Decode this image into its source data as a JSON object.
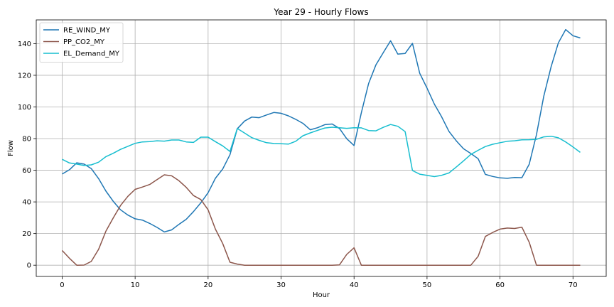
{
  "chart_data": {
    "type": "line",
    "title": "Year 29 - Hourly Flows",
    "xlabel": "Hour",
    "ylabel": "Flow",
    "xlim": [
      -3.55,
      74.55
    ],
    "ylim": [
      -7.1,
      155.0
    ],
    "xticks": [
      0,
      10,
      20,
      30,
      40,
      50,
      60,
      70
    ],
    "yticks": [
      0,
      20,
      40,
      60,
      80,
      100,
      120,
      140
    ],
    "grid": true,
    "legend_position": "top-left",
    "x": [
      0,
      1,
      2,
      3,
      4,
      5,
      6,
      7,
      8,
      9,
      10,
      11,
      12,
      13,
      14,
      15,
      16,
      17,
      18,
      19,
      20,
      21,
      22,
      23,
      24,
      25,
      26,
      27,
      28,
      29,
      30,
      31,
      32,
      33,
      34,
      35,
      36,
      37,
      38,
      39,
      40,
      41,
      42,
      43,
      44,
      45,
      46,
      47,
      48,
      49,
      50,
      51,
      52,
      53,
      54,
      55,
      56,
      57,
      58,
      59,
      60,
      61,
      62,
      63,
      64,
      65,
      66,
      67,
      68,
      69,
      70,
      71
    ],
    "series": [
      {
        "name": "RE_WIND_MY",
        "color": "#1f77b4",
        "values": [
          57.6,
          60.3,
          64.7,
          63.9,
          61.0,
          54.7,
          46.8,
          40.4,
          35.0,
          31.7,
          29.3,
          28.5,
          26.4,
          23.9,
          21.0,
          22.3,
          25.8,
          29.0,
          33.9,
          39.4,
          45.8,
          54.9,
          60.8,
          69.8,
          86.2,
          91.1,
          93.6,
          93.2,
          94.9,
          96.5,
          96.0,
          94.4,
          92.2,
          89.6,
          85.6,
          86.9,
          88.8,
          89.2,
          86.4,
          79.9,
          75.6,
          96.4,
          114.8,
          126.6,
          134.3,
          141.8,
          133.4,
          133.8,
          140.2,
          121.3,
          111.9,
          101.8,
          93.8,
          84.6,
          78.6,
          73.6,
          70.6,
          67.3,
          57.4,
          56.1,
          55.2,
          54.9,
          55.4,
          55.3,
          63.8,
          82.5,
          106.8,
          125.4,
          140.5,
          148.9,
          145.0,
          143.6
        ]
      },
      {
        "name": "PP_CO2_MY",
        "color": "#8c564b",
        "values": [
          9.3,
          4.4,
          0.0,
          0.1,
          2.4,
          10.1,
          21.6,
          29.8,
          37.7,
          43.5,
          47.9,
          49.4,
          51.0,
          54.1,
          57.1,
          56.5,
          53.4,
          49.2,
          44.0,
          41.5,
          35.0,
          22.8,
          13.7,
          1.9,
          0.7,
          0.0,
          0.0,
          0.0,
          0.0,
          0.0,
          0.0,
          0.0,
          0.0,
          0.0,
          0.0,
          0.0,
          0.0,
          0.0,
          0.2,
          6.8,
          11.0,
          0.0,
          0.0,
          0.0,
          0.0,
          0.0,
          0.0,
          0.0,
          0.0,
          0.0,
          0.0,
          0.0,
          0.0,
          0.0,
          0.0,
          0.0,
          0.0,
          5.6,
          18.2,
          20.7,
          22.8,
          23.5,
          23.2,
          24.0,
          14.5,
          0.0,
          0.0,
          0.0,
          0.0,
          0.0,
          0.0,
          0.0
        ]
      },
      {
        "name": "EL_Demand_MY",
        "color": "#17becf",
        "values": [
          66.9,
          64.6,
          63.9,
          63.0,
          63.4,
          65.1,
          68.6,
          70.7,
          73.2,
          75.1,
          77.0,
          77.9,
          78.1,
          78.6,
          78.4,
          79.1,
          79.1,
          77.9,
          77.6,
          80.9,
          80.9,
          78.1,
          75.4,
          71.9,
          86.4,
          83.5,
          80.6,
          78.9,
          77.4,
          76.9,
          76.8,
          76.5,
          78.3,
          81.8,
          83.6,
          85.2,
          86.7,
          87.2,
          86.9,
          86.5,
          86.9,
          86.8,
          85.1,
          84.9,
          87.1,
          88.9,
          87.8,
          84.4,
          59.8,
          57.5,
          56.8,
          56.0,
          56.8,
          58.3,
          62.0,
          65.9,
          70.0,
          72.6,
          75.0,
          76.4,
          77.4,
          78.3,
          78.6,
          79.2,
          79.3,
          79.5,
          81.1,
          81.5,
          80.5,
          77.9,
          74.7,
          71.3
        ]
      }
    ]
  }
}
